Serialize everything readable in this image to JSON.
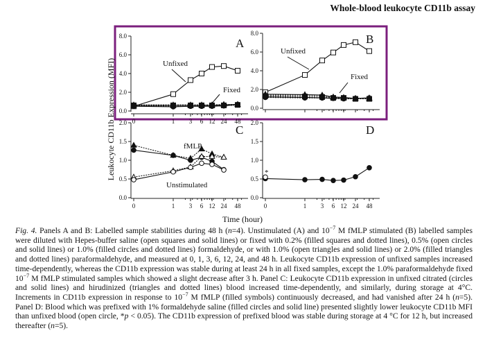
{
  "header": {
    "title": "Whole-blood leukocyte CD11b assay"
  },
  "figure": {
    "ylabel": "Leukocyte CD11b Expression (MFI)",
    "xlabel": "Time (hour)",
    "highlight_color": "#7b1f7d"
  },
  "chart_data": [
    {
      "panel": "A",
      "type": "line",
      "x": [
        0,
        1,
        3,
        6,
        12,
        24,
        48
      ],
      "xticks": [
        "0",
        "1",
        "3",
        "6",
        "12",
        "24",
        "48"
      ],
      "ylim": [
        0,
        8
      ],
      "yticks": [
        "0.0",
        "2.0",
        "4.0",
        "6.0",
        "8.0"
      ],
      "annotations": [
        "Unfixed",
        "Fixed"
      ],
      "series": [
        {
          "marker": "open-square",
          "line": "solid",
          "values": [
            0.5,
            1.8,
            3.3,
            4.0,
            4.7,
            4.8,
            4.3
          ]
        },
        {
          "marker": "filled-square",
          "line": "dotted",
          "values": [
            0.6,
            0.6,
            0.6,
            0.6,
            0.6,
            0.6,
            0.65
          ]
        },
        {
          "marker": "open-circle",
          "line": "solid",
          "values": [
            0.5,
            0.45,
            0.5,
            0.5,
            0.5,
            0.55,
            0.7
          ]
        },
        {
          "marker": "filled-circle",
          "line": "dotted",
          "values": [
            0.55,
            0.5,
            0.5,
            0.5,
            0.55,
            0.55,
            0.65
          ]
        },
        {
          "marker": "open-triangle",
          "line": "solid",
          "values": [
            0.6,
            0.6,
            0.6,
            0.6,
            0.6,
            0.65,
            0.7
          ]
        },
        {
          "marker": "filled-triangle",
          "line": "dotted",
          "values": [
            0.65,
            0.65,
            0.65,
            0.65,
            0.65,
            0.7,
            0.7
          ]
        }
      ]
    },
    {
      "panel": "B",
      "type": "line",
      "x": [
        0,
        1,
        3,
        6,
        12,
        24,
        48
      ],
      "xticks": [],
      "ylim": [
        0,
        8
      ],
      "yticks": [
        "0.0",
        "2.0",
        "4.0",
        "6.0",
        "8.0"
      ],
      "annotations": [
        "Unfixed",
        "Fixed"
      ],
      "series": [
        {
          "marker": "open-square",
          "line": "solid",
          "values": [
            1.7,
            3.55,
            5.1,
            5.95,
            6.75,
            7.05,
            6.1
          ]
        },
        {
          "marker": "filled-square",
          "line": "dotted",
          "values": [
            1.3,
            1.25,
            1.2,
            1.1,
            1.1,
            1.0,
            1.0
          ]
        },
        {
          "marker": "open-circle",
          "line": "solid",
          "values": [
            1.2,
            1.15,
            1.1,
            1.05,
            1.05,
            1.05,
            1.1
          ]
        },
        {
          "marker": "filled-circle",
          "line": "dotted",
          "values": [
            1.15,
            1.1,
            1.1,
            1.05,
            1.0,
            1.0,
            1.0
          ]
        },
        {
          "marker": "open-triangle",
          "line": "solid",
          "values": [
            1.5,
            1.45,
            1.4,
            1.2,
            1.15,
            1.05,
            1.1
          ]
        },
        {
          "marker": "filled-triangle",
          "line": "dotted",
          "values": [
            1.4,
            1.4,
            1.35,
            1.15,
            1.1,
            1.05,
            1.0
          ]
        }
      ]
    },
    {
      "panel": "C",
      "type": "line",
      "x": [
        0,
        1,
        3,
        6,
        12,
        24
      ],
      "xticks": [
        "0",
        "1",
        "3",
        "6",
        "12",
        "24",
        "48"
      ],
      "ylim": [
        0,
        2
      ],
      "yticks": [
        "0.0",
        "0.5",
        "1.0",
        "1.5",
        "2.0"
      ],
      "annotations": [
        "fMLP",
        "Unstimulated"
      ],
      "series": [
        {
          "marker": "filled-triangle",
          "line": "dotted",
          "values": [
            1.4,
            1.13,
            1.05,
            1.3,
            1.17,
            1.08
          ]
        },
        {
          "marker": "filled-circle",
          "line": "solid",
          "values": [
            1.27,
            1.13,
            1.0,
            1.08,
            0.97,
            0.75
          ]
        },
        {
          "marker": "open-triangle",
          "line": "dotted",
          "values": [
            0.55,
            0.72,
            0.82,
            1.1,
            1.1,
            1.08
          ]
        },
        {
          "marker": "open-circle",
          "line": "solid",
          "values": [
            0.48,
            0.69,
            0.81,
            0.92,
            0.89,
            0.74
          ]
        }
      ]
    },
    {
      "panel": "D",
      "type": "line",
      "x": [
        0,
        1,
        3,
        6,
        12,
        24,
        48
      ],
      "xticks": [
        "0",
        "1",
        "3",
        "6",
        "12",
        "24",
        "48"
      ],
      "ylim": [
        0,
        2
      ],
      "yticks": [
        "0.0",
        "0.5",
        "1.0",
        "1.5",
        "2.0"
      ],
      "annotations": [
        "*"
      ],
      "series": [
        {
          "marker": "filled-circle",
          "line": "solid",
          "values": [
            0.51,
            0.48,
            0.49,
            0.46,
            0.47,
            0.56,
            0.8
          ]
        },
        {
          "marker": "open-circle",
          "line": "none",
          "x": [
            0
          ],
          "values": [
            0.55
          ]
        }
      ]
    }
  ],
  "caption": [
    {
      "t": "Fig. 4.",
      "s": "i"
    },
    {
      "t": " Panels A and B: Labelled sample stabilities during 48 h ("
    },
    {
      "t": "n",
      "s": "i"
    },
    {
      "t": "=4). Unstimulated (A) and 10"
    },
    {
      "t": "−7",
      "s": "sup"
    },
    {
      "t": " M fMLP stimulated (B) labelled samples were diluted with Hepes-buffer saline (open squares and solid lines) or fixed with 0.2% (filled squares and dotted lines), 0.5% (open circles and solid lines) or 1.0% (filled circles and dotted lines) formaldehyde, or with 1.0% (open triangles and solid lines) or 2.0% (filled triangles and dotted lines) paraformaldehyde, and measured at 0, 1, 3, 6, 12, 24, and 48 h. Leukocyte CD11b expression of unfixed samples increased time-dependently, whereas the CD11b expression was stable during at least 24 h in all fixed samples, except the 1.0% paraformaldehyde fixed 10"
    },
    {
      "t": "−7",
      "s": "sup"
    },
    {
      "t": " M fMLP stimulated samples which showed a slight decrease after 3 h. Panel C: Leukocyte CD11b expression in unfixed citrated (circles and solid lines) and hirudinized (triangles and dotted lines) blood increased time-dependently, and similarly, during storage at 4°C. Increments in CD11b expression in response to 10"
    },
    {
      "t": "−7",
      "s": "sup"
    },
    {
      "t": " M fMLP (filled symbols) continuously decreased, and had vanished after 24 h ("
    },
    {
      "t": "n",
      "s": "i"
    },
    {
      "t": "=5). Panel D: Blood which was prefixed with 1% formaldehyde saline (filled circles and solid line) presented slightly lower leukocyte CD11b MFI than unfixed blood (open circle, *"
    },
    {
      "t": "p",
      "s": "i"
    },
    {
      "t": " < 0.05). The CD11b expression of prefixed blood was stable during storage at 4 °C for 12 h, but increased thereafter ("
    },
    {
      "t": "n",
      "s": "i"
    },
    {
      "t": "=5)."
    }
  ]
}
